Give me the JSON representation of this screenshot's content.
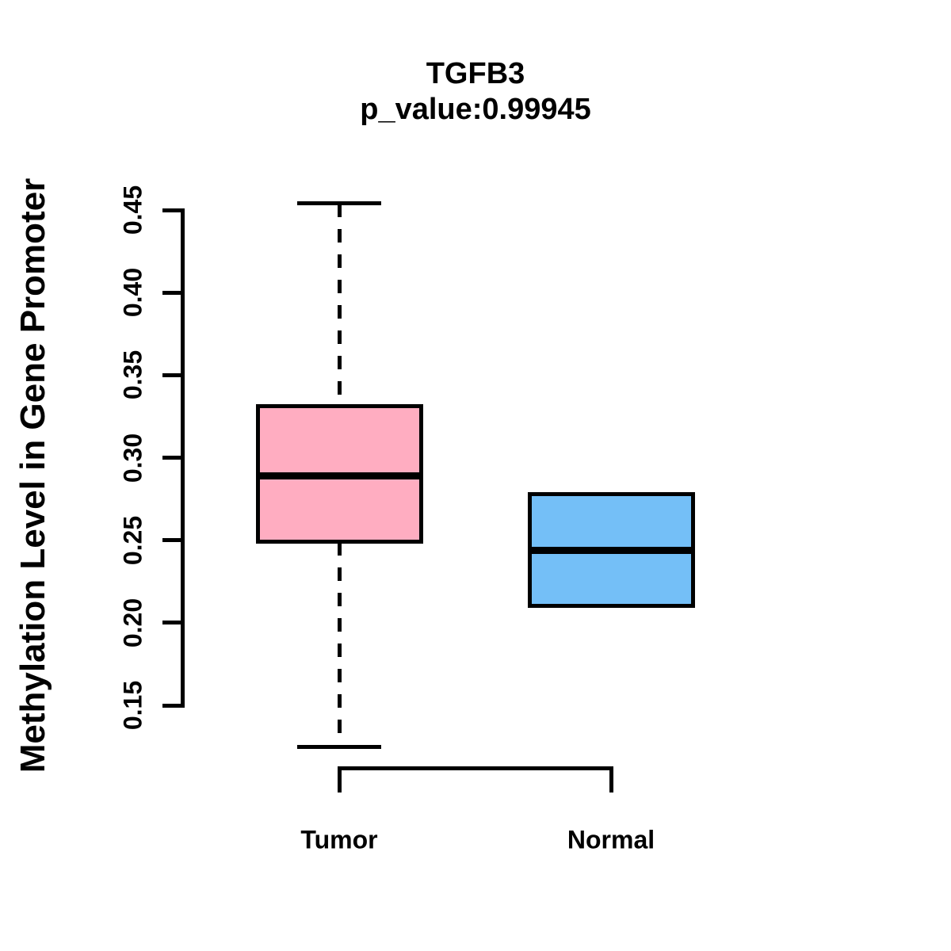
{
  "figure": {
    "title": "TGFB3",
    "subtitle": "p_value:0.99945"
  },
  "chart_data": {
    "type": "boxplot",
    "title": "TGFB3",
    "subtitle": "p_value:0.99945",
    "gene": "TGFB3",
    "p_value": "0.99945",
    "xlabel": "",
    "ylabel": "Methylation Level in Gene Promoter",
    "categories": [
      "Tumor",
      "Normal"
    ],
    "y_ticks": [
      "0.15",
      "0.20",
      "0.25",
      "0.30",
      "0.35",
      "0.40",
      "0.45"
    ],
    "axis_range": [
      0.15,
      0.45
    ],
    "ylim": [
      0.12,
      0.458
    ],
    "grid": false,
    "legend": null,
    "series": [
      {
        "name": "Tumor",
        "fill_color": "#FFADC1",
        "whisker_low": 0.125,
        "q1": 0.249,
        "median": 0.289,
        "q3": 0.331,
        "whisker_high": 0.454
      },
      {
        "name": "Normal",
        "fill_color": "#74BFF7",
        "whisker_low": 0.21,
        "q1": 0.21,
        "median": 0.244,
        "q3": 0.278,
        "whisker_high": 0.278
      }
    ]
  },
  "colors": {
    "box_tumor": "#FFADC1",
    "box_normal": "#74BFF7",
    "stroke": "#000000",
    "background": "#FFFFFF"
  }
}
